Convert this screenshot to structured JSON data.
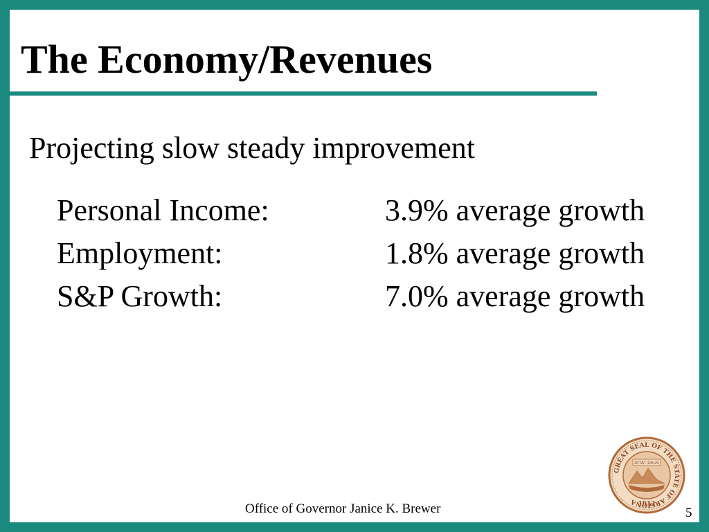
{
  "slide": {
    "title": "The Economy/Revenues",
    "subheading": "Projecting slow steady improvement",
    "stats": [
      {
        "label": "Personal Income:",
        "value": "3.9% average growth"
      },
      {
        "label": "Employment:",
        "value": "1.8% average growth"
      },
      {
        "label": "S&P Growth:",
        "value": "7.0% average growth"
      }
    ],
    "seal": {
      "ring_text": "GREAT SEAL OF THE STATE OF ARIZONA",
      "motto": "DITAT DEUS",
      "year": "1912"
    },
    "footer": "Office of Governor Janice K. Brewer",
    "page_number": "5"
  },
  "colors": {
    "border": "#1a8a7e",
    "background": "#ffffff",
    "text": "#000000",
    "seal": "#b06a3a"
  }
}
